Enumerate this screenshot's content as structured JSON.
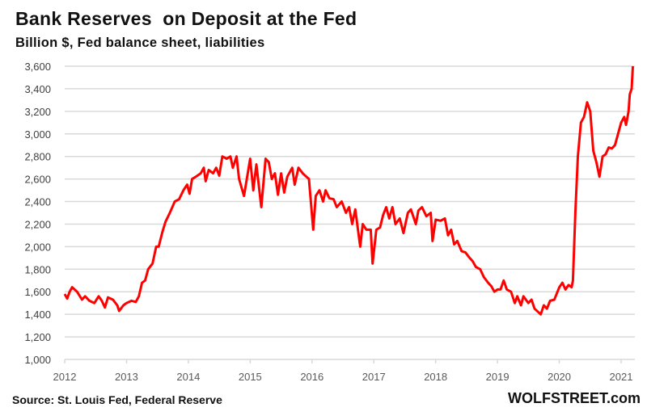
{
  "chart_data": {
    "type": "line",
    "title": "Bank Reserves  on Deposit at the Fed",
    "subtitle": "Billion $, Fed balance sheet, liabilities",
    "source": "Source: St. Louis Fed, Federal Reserve",
    "brand": "WOLFSTREET.com",
    "ylim": [
      1000,
      3600
    ],
    "yticks": [
      1000,
      1200,
      1400,
      1600,
      1800,
      2000,
      2200,
      2400,
      2600,
      2800,
      3000,
      3200,
      3400,
      3600
    ],
    "ytick_labels": [
      "1,000",
      "1,200",
      "1,400",
      "1,600",
      "1,800",
      "2,000",
      "2,200",
      "2,400",
      "2,600",
      "2,800",
      "3,000",
      "3,200",
      "3,400",
      "3,600"
    ],
    "xlim": [
      2012,
      2021.22
    ],
    "xticks": [
      2012,
      2013,
      2014,
      2015,
      2016,
      2017,
      2018,
      2019,
      2020,
      2021
    ],
    "xtick_labels": [
      "2012",
      "2013",
      "2014",
      "2015",
      "2016",
      "2017",
      "2018",
      "2019",
      "2020",
      "2021"
    ],
    "grid": true,
    "line_color": "#ff0000",
    "series": [
      {
        "points": [
          [
            2012.0,
            1580
          ],
          [
            2012.04,
            1540
          ],
          [
            2012.08,
            1600
          ],
          [
            2012.12,
            1640
          ],
          [
            2012.2,
            1600
          ],
          [
            2012.28,
            1530
          ],
          [
            2012.33,
            1560
          ],
          [
            2012.4,
            1520
          ],
          [
            2012.48,
            1500
          ],
          [
            2012.55,
            1560
          ],
          [
            2012.6,
            1520
          ],
          [
            2012.65,
            1460
          ],
          [
            2012.7,
            1550
          ],
          [
            2012.78,
            1530
          ],
          [
            2012.85,
            1480
          ],
          [
            2012.88,
            1430
          ],
          [
            2012.95,
            1480
          ],
          [
            2013.0,
            1500
          ],
          [
            2013.08,
            1520
          ],
          [
            2013.15,
            1510
          ],
          [
            2013.2,
            1560
          ],
          [
            2013.25,
            1680
          ],
          [
            2013.3,
            1700
          ],
          [
            2013.35,
            1800
          ],
          [
            2013.42,
            1850
          ],
          [
            2013.48,
            2000
          ],
          [
            2013.52,
            2000
          ],
          [
            2013.58,
            2130
          ],
          [
            2013.63,
            2220
          ],
          [
            2013.7,
            2300
          ],
          [
            2013.78,
            2400
          ],
          [
            2013.85,
            2420
          ],
          [
            2013.92,
            2500
          ],
          [
            2013.98,
            2550
          ],
          [
            2014.02,
            2470
          ],
          [
            2014.06,
            2600
          ],
          [
            2014.12,
            2620
          ],
          [
            2014.2,
            2650
          ],
          [
            2014.25,
            2700
          ],
          [
            2014.28,
            2580
          ],
          [
            2014.33,
            2680
          ],
          [
            2014.4,
            2650
          ],
          [
            2014.45,
            2700
          ],
          [
            2014.5,
            2630
          ],
          [
            2014.55,
            2800
          ],
          [
            2014.62,
            2780
          ],
          [
            2014.68,
            2800
          ],
          [
            2014.72,
            2700
          ],
          [
            2014.78,
            2800
          ],
          [
            2014.82,
            2600
          ],
          [
            2014.9,
            2450
          ],
          [
            2015.0,
            2780
          ],
          [
            2015.05,
            2500
          ],
          [
            2015.1,
            2730
          ],
          [
            2015.18,
            2350
          ],
          [
            2015.25,
            2780
          ],
          [
            2015.3,
            2750
          ],
          [
            2015.35,
            2600
          ],
          [
            2015.4,
            2650
          ],
          [
            2015.45,
            2460
          ],
          [
            2015.5,
            2650
          ],
          [
            2015.55,
            2480
          ],
          [
            2015.6,
            2620
          ],
          [
            2015.68,
            2700
          ],
          [
            2015.72,
            2550
          ],
          [
            2015.78,
            2700
          ],
          [
            2015.85,
            2650
          ],
          [
            2015.95,
            2600
          ],
          [
            2016.02,
            2150
          ],
          [
            2016.06,
            2450
          ],
          [
            2016.12,
            2500
          ],
          [
            2016.18,
            2400
          ],
          [
            2016.22,
            2500
          ],
          [
            2016.28,
            2430
          ],
          [
            2016.35,
            2420
          ],
          [
            2016.4,
            2350
          ],
          [
            2016.48,
            2400
          ],
          [
            2016.55,
            2300
          ],
          [
            2016.6,
            2350
          ],
          [
            2016.65,
            2200
          ],
          [
            2016.7,
            2330
          ],
          [
            2016.78,
            2000
          ],
          [
            2016.82,
            2200
          ],
          [
            2016.88,
            2150
          ],
          [
            2016.95,
            2150
          ],
          [
            2016.98,
            1850
          ],
          [
            2017.04,
            2150
          ],
          [
            2017.1,
            2170
          ],
          [
            2017.15,
            2280
          ],
          [
            2017.2,
            2350
          ],
          [
            2017.25,
            2250
          ],
          [
            2017.3,
            2350
          ],
          [
            2017.35,
            2200
          ],
          [
            2017.42,
            2250
          ],
          [
            2017.48,
            2120
          ],
          [
            2017.55,
            2300
          ],
          [
            2017.6,
            2330
          ],
          [
            2017.68,
            2200
          ],
          [
            2017.72,
            2320
          ],
          [
            2017.78,
            2350
          ],
          [
            2017.85,
            2270
          ],
          [
            2017.92,
            2300
          ],
          [
            2017.95,
            2050
          ],
          [
            2018.0,
            2240
          ],
          [
            2018.08,
            2230
          ],
          [
            2018.15,
            2250
          ],
          [
            2018.2,
            2100
          ],
          [
            2018.25,
            2150
          ],
          [
            2018.3,
            2020
          ],
          [
            2018.35,
            2050
          ],
          [
            2018.42,
            1960
          ],
          [
            2018.48,
            1950
          ],
          [
            2018.55,
            1900
          ],
          [
            2018.6,
            1870
          ],
          [
            2018.65,
            1820
          ],
          [
            2018.72,
            1800
          ],
          [
            2018.78,
            1730
          ],
          [
            2018.85,
            1680
          ],
          [
            2018.9,
            1650
          ],
          [
            2018.95,
            1600
          ],
          [
            2019.0,
            1620
          ],
          [
            2019.05,
            1620
          ],
          [
            2019.1,
            1700
          ],
          [
            2019.15,
            1620
          ],
          [
            2019.22,
            1600
          ],
          [
            2019.28,
            1500
          ],
          [
            2019.32,
            1560
          ],
          [
            2019.38,
            1480
          ],
          [
            2019.42,
            1560
          ],
          [
            2019.5,
            1500
          ],
          [
            2019.55,
            1530
          ],
          [
            2019.6,
            1450
          ],
          [
            2019.7,
            1400
          ],
          [
            2019.75,
            1480
          ],
          [
            2019.8,
            1450
          ],
          [
            2019.85,
            1520
          ],
          [
            2019.92,
            1530
          ],
          [
            2020.0,
            1640
          ],
          [
            2020.05,
            1680
          ],
          [
            2020.1,
            1620
          ],
          [
            2020.15,
            1660
          ],
          [
            2020.2,
            1640
          ],
          [
            2020.22,
            1700
          ],
          [
            2020.26,
            2300
          ],
          [
            2020.3,
            2800
          ],
          [
            2020.35,
            3100
          ],
          [
            2020.4,
            3150
          ],
          [
            2020.45,
            3280
          ],
          [
            2020.5,
            3200
          ],
          [
            2020.55,
            2850
          ],
          [
            2020.6,
            2750
          ],
          [
            2020.65,
            2620
          ],
          [
            2020.7,
            2800
          ],
          [
            2020.75,
            2820
          ],
          [
            2020.8,
            2880
          ],
          [
            2020.85,
            2870
          ],
          [
            2020.9,
            2900
          ],
          [
            2020.95,
            3000
          ],
          [
            2021.0,
            3100
          ],
          [
            2021.05,
            3150
          ],
          [
            2021.08,
            3080
          ],
          [
            2021.12,
            3200
          ],
          [
            2021.14,
            3350
          ],
          [
            2021.17,
            3400
          ],
          [
            2021.19,
            3600
          ]
        ]
      }
    ]
  }
}
